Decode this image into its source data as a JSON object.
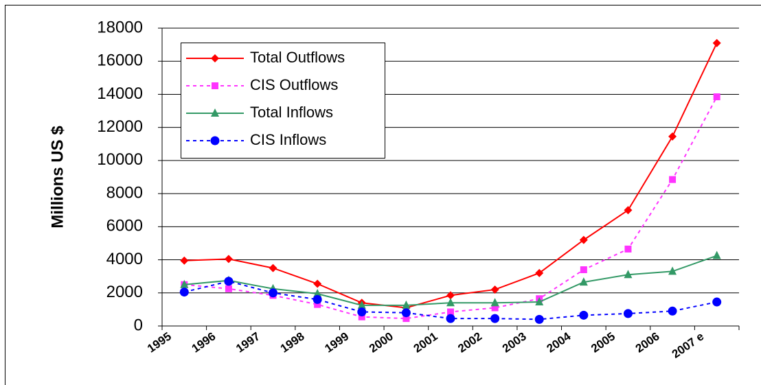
{
  "chart_data": {
    "type": "line",
    "y_label": "Millions US $",
    "categories": [
      "1995",
      "1996",
      "1997",
      "1998",
      "1999",
      "2000",
      "2001",
      "2002",
      "2003",
      "2004",
      "2005",
      "2006",
      "2007 e"
    ],
    "series": [
      {
        "name": "Total Outflows",
        "color": "#ff0000",
        "marker": "diamond",
        "dashed": false,
        "values": [
          3950,
          4050,
          3500,
          2550,
          1400,
          1100,
          1850,
          2200,
          3200,
          5200,
          7000,
          11450,
          17100
        ]
      },
      {
        "name": "CIS Outflows",
        "color": "#ff33ff",
        "marker": "square",
        "dashed": true,
        "values": [
          2500,
          2250,
          1850,
          1300,
          550,
          450,
          850,
          1100,
          1650,
          3400,
          4650,
          8850,
          13850
        ]
      },
      {
        "name": "Total Inflows",
        "color": "#339966",
        "marker": "triangle",
        "dashed": false,
        "values": [
          2500,
          2750,
          2250,
          1950,
          1250,
          1250,
          1400,
          1400,
          1450,
          2650,
          3100,
          3300,
          4250
        ]
      },
      {
        "name": "CIS Inflows",
        "color": "#0000ff",
        "marker": "circle",
        "dashed": true,
        "values": [
          2050,
          2700,
          2000,
          1600,
          850,
          800,
          450,
          450,
          400,
          650,
          750,
          900,
          1450
        ]
      }
    ],
    "ylim": [
      0,
      18000
    ],
    "yticks": [
      0,
      2000,
      4000,
      6000,
      8000,
      10000,
      12000,
      14000,
      16000,
      18000
    ],
    "grid": true,
    "legend": "top-left"
  }
}
